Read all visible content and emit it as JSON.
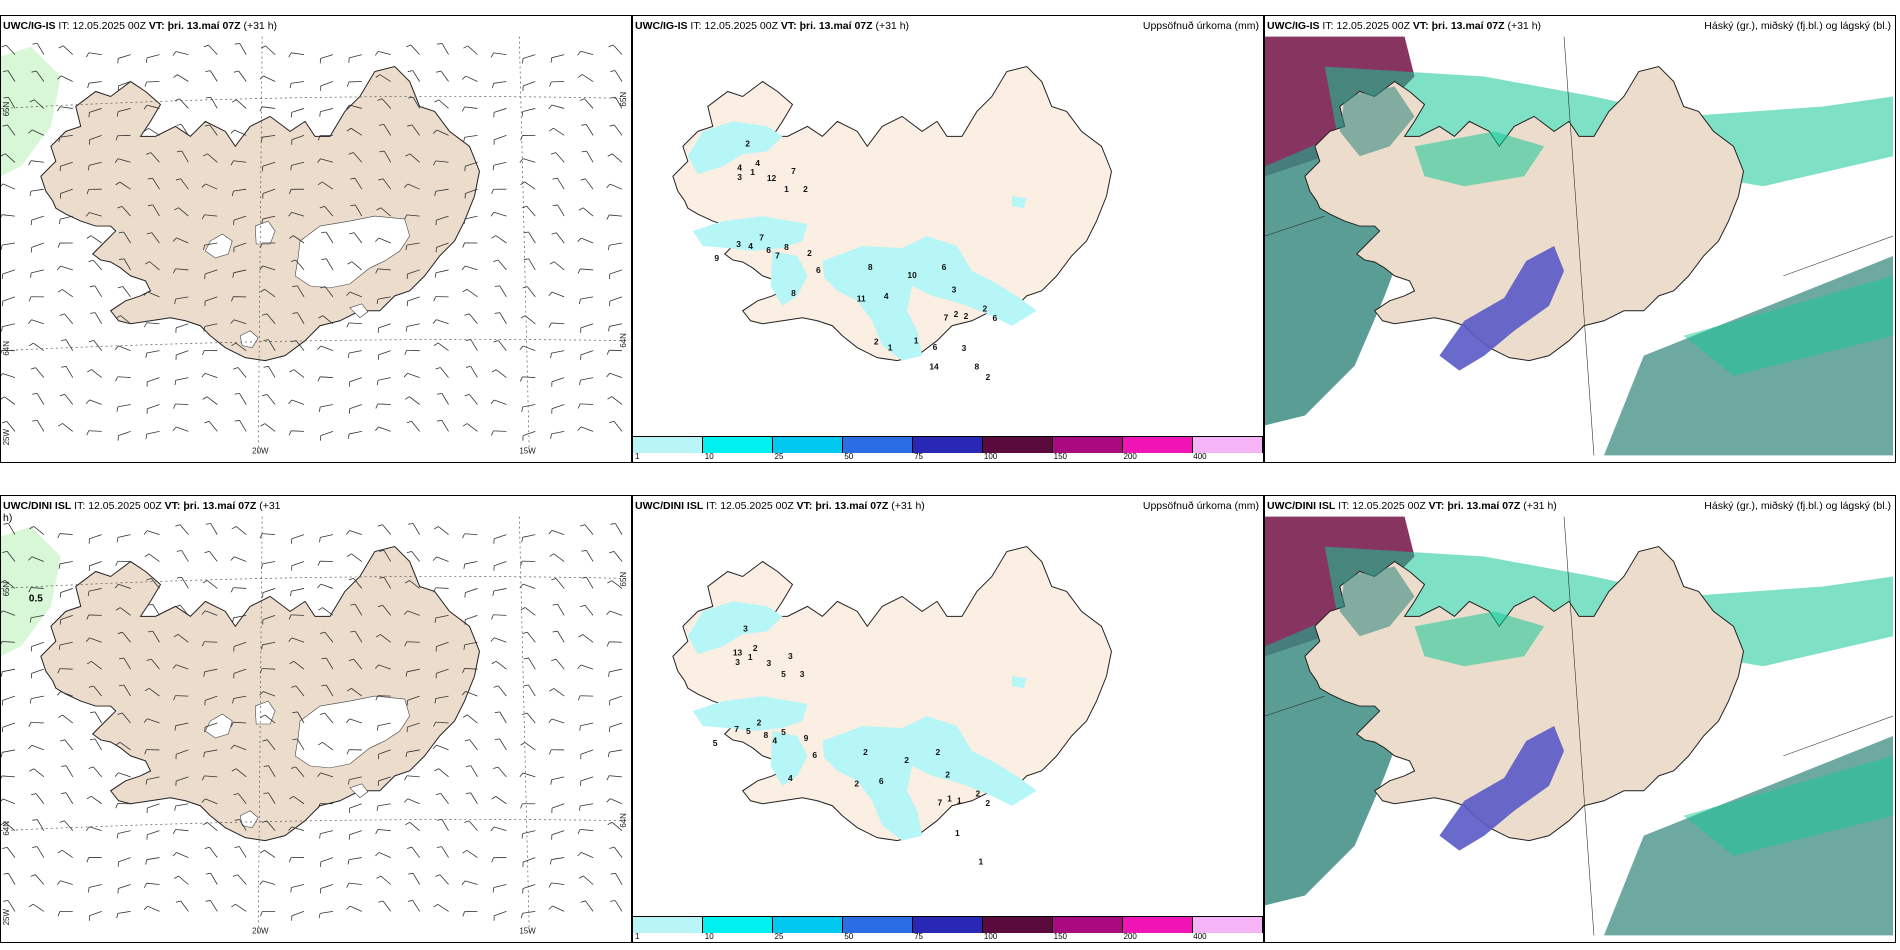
{
  "rows": [
    {
      "wind": {
        "model": "UWC/IG-IS",
        "it_label": "IT:",
        "it": "12.05.2025 00Z",
        "vt_label": "VT:",
        "vt": "þri. 13.maí 07Z",
        "lead": "(+31 h)",
        "lat_left": [
          "65N",
          "64N",
          "25W"
        ],
        "lat_right": [
          "65N",
          "64N"
        ],
        "lon": [
          "20W",
          "15W"
        ],
        "annotation": ""
      },
      "precip": {
        "model": "UWC/IG-IS",
        "it_label": "IT:",
        "it": "12.05.2025 00Z",
        "vt_label": "VT:",
        "vt": "þri. 13.maí 07Z",
        "lead": "(+31 h)",
        "product": "Uppsöfnuð úrkoma (mm)",
        "values": [
          "2",
          "2",
          "4",
          "12",
          "7",
          "3",
          "4",
          "1",
          "1",
          "2",
          "9",
          "3",
          "4",
          "7",
          "6",
          "8",
          "7",
          "2",
          "8",
          "6",
          "11",
          "8",
          "4",
          "10",
          "6",
          "3",
          "2",
          "2",
          "2",
          "7",
          "6",
          "3",
          "2",
          "8",
          "2",
          "1",
          "1",
          "6",
          "14"
        ]
      },
      "cloud": {
        "model": "UWC/IG-IS",
        "it_label": "IT:",
        "it": "12.05.2025 00Z",
        "vt_label": "VT:",
        "vt": "þri. 13.maí 07Z",
        "lead": "(+31 h)",
        "product": "Háský (gr.), miðský (fj.bl.) og lágský (bl.)"
      }
    },
    {
      "wind": {
        "model": "UWC/DINI ISL",
        "it_label": "IT:",
        "it": "12.05.2025 00Z",
        "vt_label": "VT:",
        "vt": "þri. 13.maí 07Z",
        "lead": "(+31",
        "lead_wrap": "h)",
        "lat_left": [
          "65N",
          "64N",
          "25W"
        ],
        "lat_right": [
          "65N",
          "64N"
        ],
        "lon": [
          "20W",
          "15W"
        ],
        "annotation": "0.5"
      },
      "precip": {
        "model": "UWC/DINI ISL",
        "it_label": "IT:",
        "it": "12.05.2025 00Z",
        "vt_label": "VT:",
        "vt": "þri. 13.maí 07Z",
        "lead": "(+31 h)",
        "product": "Uppsöfnuð úrkoma (mm)",
        "values": [
          "3",
          "3",
          "2",
          "3",
          "3",
          "3",
          "13",
          "1",
          "5",
          "3",
          "5",
          "7",
          "5",
          "2",
          "8",
          "5",
          "4",
          "9",
          "4",
          "6",
          "2",
          "2",
          "6",
          "2",
          "2",
          "2",
          "1",
          "1",
          "2",
          "7",
          "2",
          "1",
          "1"
        ]
      },
      "cloud": {
        "model": "UWC/DINI ISL",
        "it_label": "IT:",
        "it": "12.05.2025 00Z",
        "vt_label": "VT:",
        "vt": "þri. 13.maí 07Z",
        "lead": "(+31 h)",
        "product": "Háský (gr.), miðský (fj.bl.) og lágský (bl.)"
      }
    }
  ],
  "precip_colorbar": {
    "ticks": [
      "1",
      "10",
      "25",
      "50",
      "75",
      "100",
      "150",
      "200",
      "400"
    ],
    "colors": [
      "#b9f5f5",
      "#00f0f0",
      "#00c8f0",
      "#2a6ee6",
      "#2828b4",
      "#5a0a3c",
      "#aa0a80",
      "#f014b4",
      "#f5b4f5"
    ]
  },
  "colors": {
    "land": "#ecdccc",
    "land_precip": "#fbeee2",
    "snow": "#ffffff",
    "precip_fill": "#b7f6f6",
    "coast": "#222222",
    "high_cloud": "#14c896",
    "mid_cloud": "#3c8c82",
    "low_cloud": "#5a5ac8",
    "overlap": "#7a1e50"
  }
}
